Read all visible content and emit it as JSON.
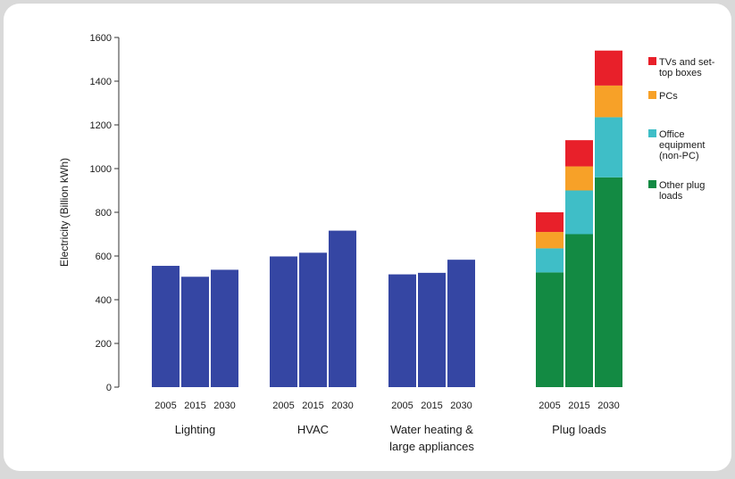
{
  "chart_data": {
    "type": "bar",
    "stacked": true,
    "title": "",
    "ylabel": "Electricity (Billion kWh)",
    "xlabel": "",
    "ylim": [
      0,
      1600
    ],
    "yticks": [
      0,
      200,
      400,
      600,
      800,
      1000,
      1200,
      1400,
      1600
    ],
    "grid": false,
    "legend_position": "right",
    "groups": [
      {
        "label_lines": [
          "Lighting"
        ],
        "years": [
          "2005",
          "2015",
          "2030"
        ],
        "bars": [
          {
            "total": 555
          },
          {
            "total": 505
          },
          {
            "total": 537
          }
        ]
      },
      {
        "label_lines": [
          "HVAC"
        ],
        "years": [
          "2005",
          "2015",
          "2030"
        ],
        "bars": [
          {
            "total": 598
          },
          {
            "total": 615
          },
          {
            "total": 716
          }
        ]
      },
      {
        "label_lines": [
          "Water heating &",
          "large appliances"
        ],
        "years": [
          "2005",
          "2015",
          "2030"
        ],
        "bars": [
          {
            "total": 516
          },
          {
            "total": 523
          },
          {
            "total": 583
          }
        ]
      },
      {
        "label_lines": [
          "Plug loads"
        ],
        "years": [
          "2005",
          "2015",
          "2030"
        ],
        "bars": [
          {
            "other": 525,
            "office": 110,
            "pcs": 75,
            "tvs": 90
          },
          {
            "other": 700,
            "office": 200,
            "pcs": 110,
            "tvs": 120
          },
          {
            "other": 960,
            "office": 275,
            "pcs": 145,
            "tvs": 160
          }
        ]
      }
    ],
    "series": [
      {
        "key": "tvs",
        "lines": [
          "TVs and set-",
          "top boxes"
        ],
        "color": "#e8202a"
      },
      {
        "key": "pcs",
        "lines": [
          "PCs"
        ],
        "color": "#f7a128"
      },
      {
        "key": "office",
        "lines": [
          "Office",
          "equipment",
          "(non-PC)"
        ],
        "color": "#3fbec7"
      },
      {
        "key": "other",
        "lines": [
          "Other plug",
          "loads"
        ],
        "color": "#138a43"
      }
    ],
    "total_color": "#3546a3",
    "stack_order": [
      "other",
      "office",
      "pcs",
      "tvs"
    ]
  }
}
